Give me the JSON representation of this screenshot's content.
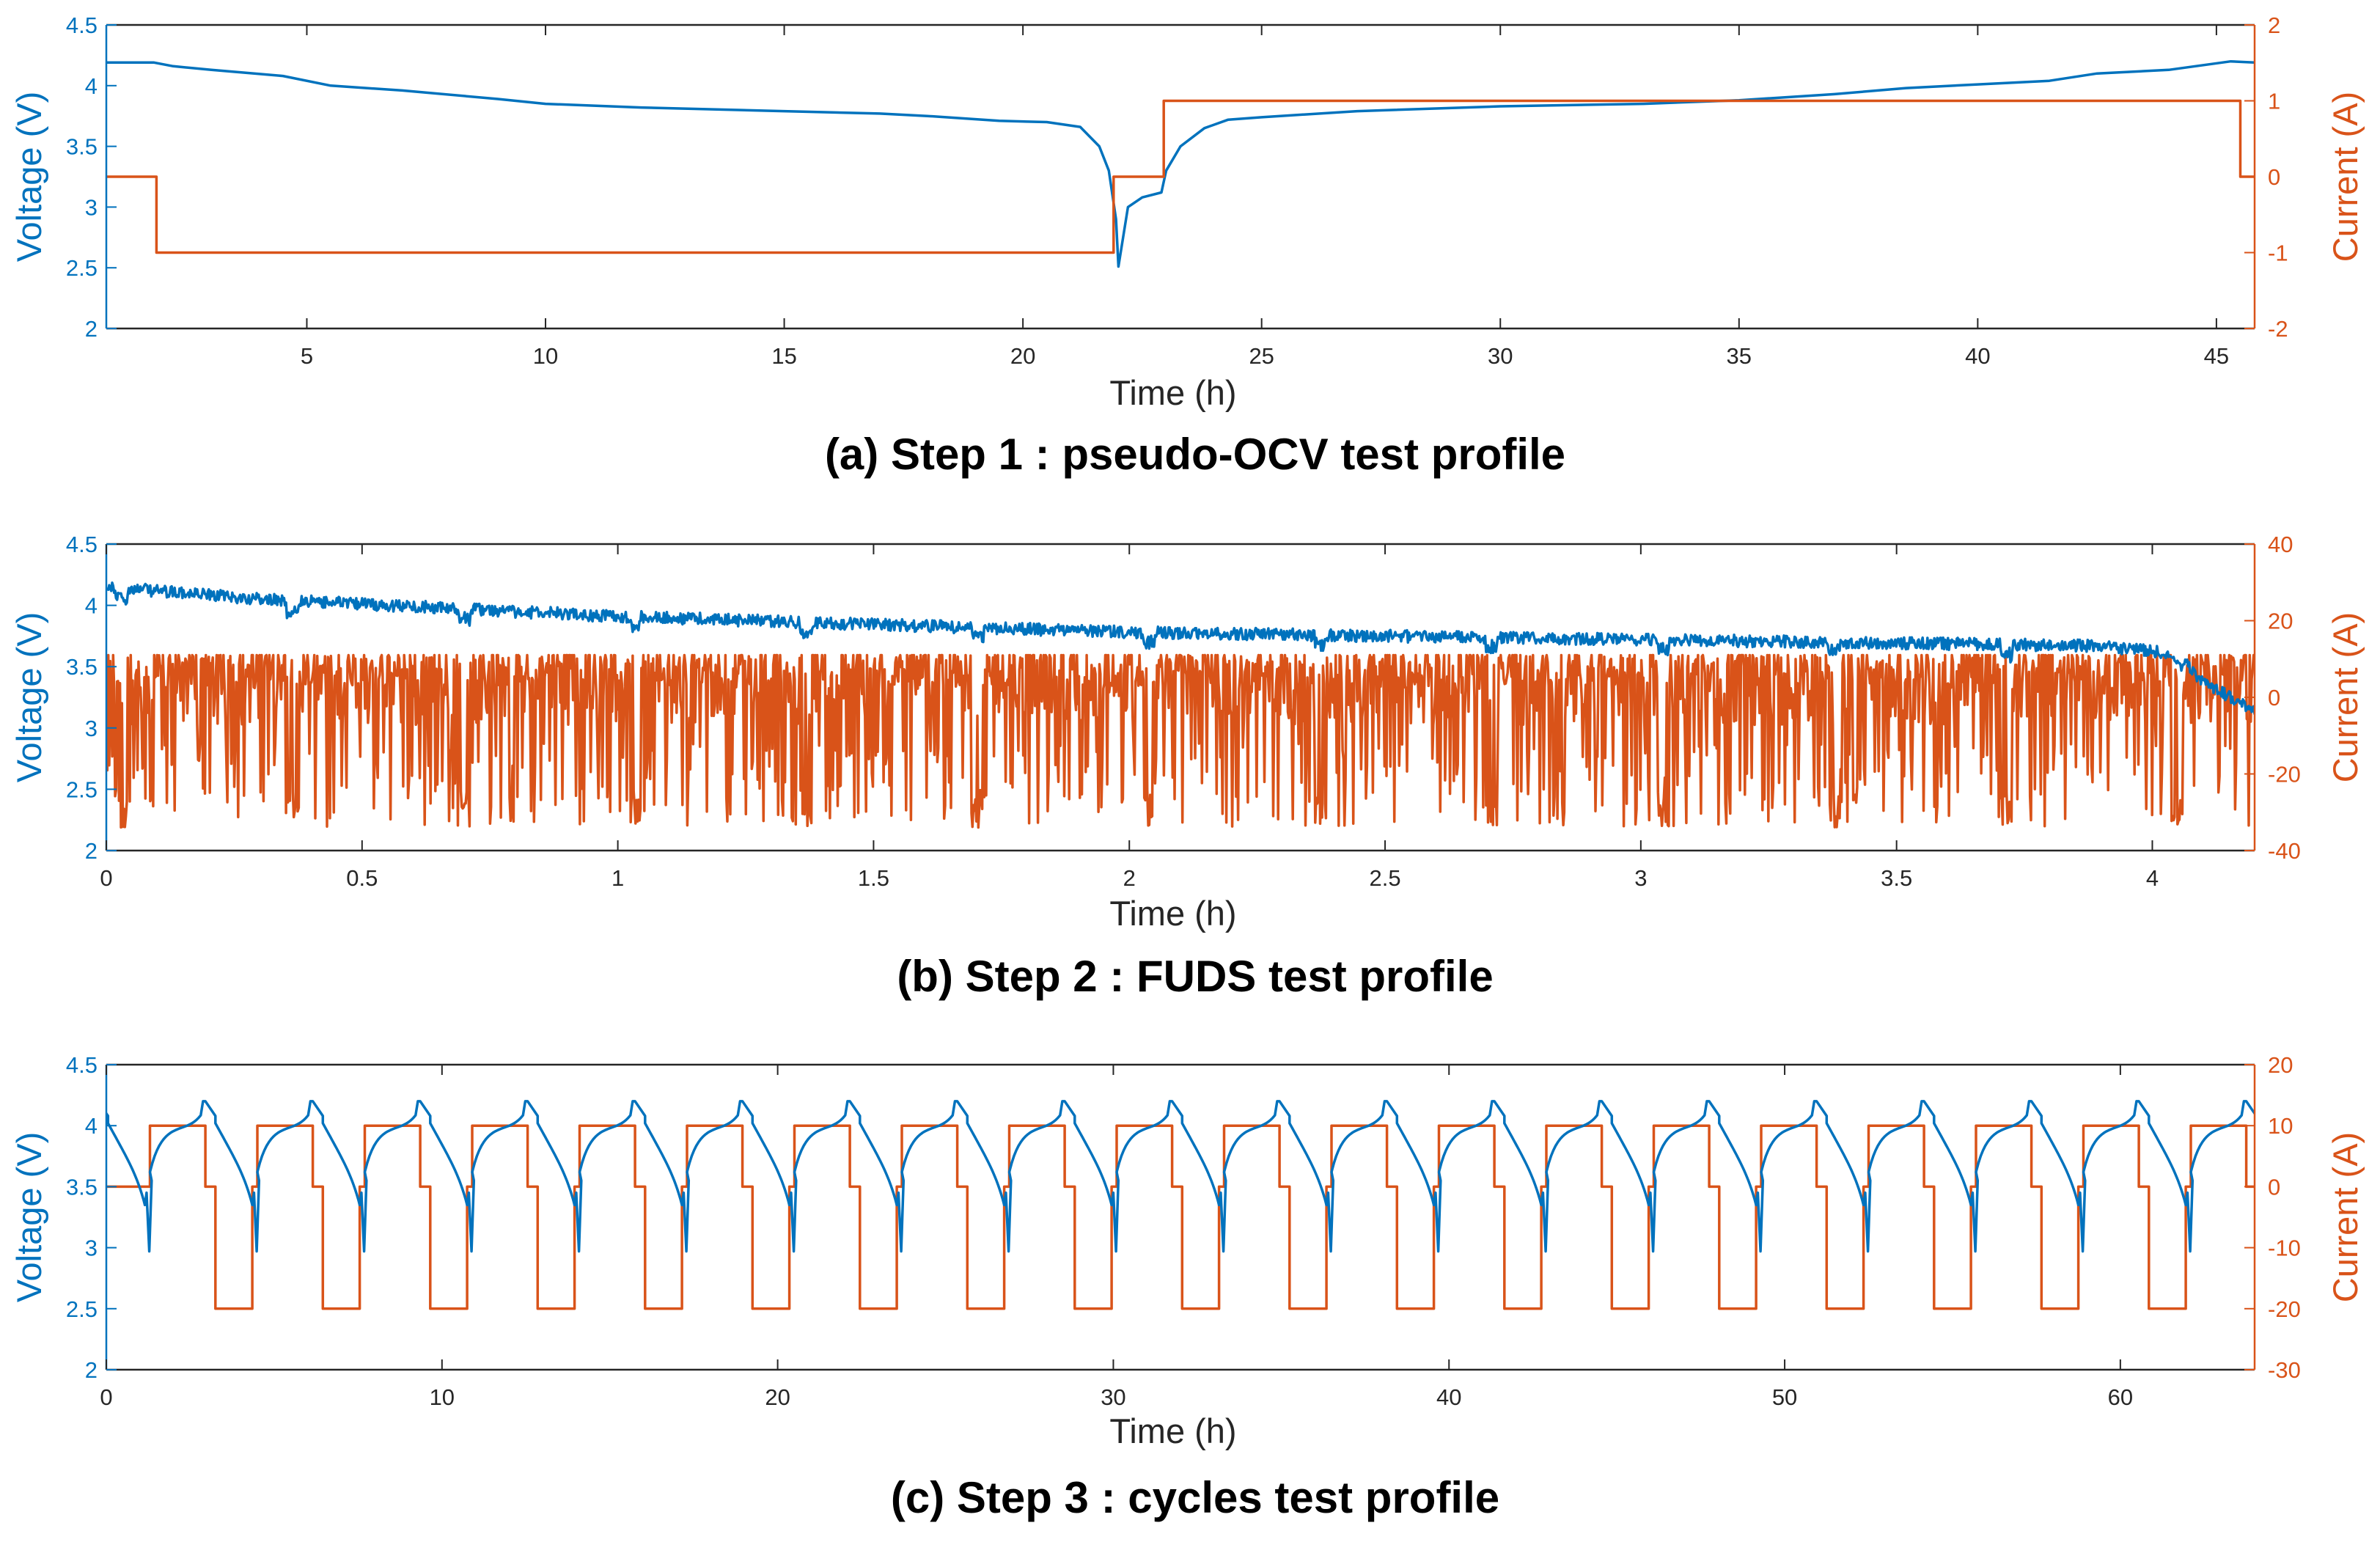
{
  "colors": {
    "voltage": "#0072BD",
    "current": "#D95319",
    "axis": "#262626",
    "caption": "#000000"
  },
  "chart_data": [
    {
      "type": "line",
      "caption": "(a) Step 1 : pseudo-OCV test profile",
      "xlabel": "Time (h)",
      "ylabel_left": "Voltage (V)",
      "ylabel_right": "Current (A)",
      "xlim": [
        0.8,
        45.8
      ],
      "ylim_left": [
        2,
        4.5
      ],
      "ylim_right": [
        -2,
        2
      ],
      "xticks": [
        5,
        10,
        15,
        20,
        25,
        30,
        35,
        40,
        45
      ],
      "xtick_labels": [
        "5",
        "10",
        "15",
        "20",
        "25",
        "30",
        "35",
        "40",
        "45"
      ],
      "yticks_left": [
        2,
        2.5,
        3,
        3.5,
        4,
        4.5
      ],
      "ytick_labels_left": [
        "2",
        "2.5",
        "3",
        "3.5",
        "4",
        "4.5"
      ],
      "yticks_right": [
        -2,
        -1,
        0,
        1,
        2
      ],
      "ytick_labels_right": [
        "-2",
        "-1",
        "0",
        "1",
        "2"
      ],
      "series": [
        {
          "name": "Voltage",
          "axis": "left",
          "style": "line",
          "x": [
            0.8,
            1.8,
            2.2,
            3,
            4.5,
            5.5,
            7,
            9,
            10,
            12,
            15,
            17,
            18,
            19.5,
            20.5,
            21.2,
            21.6,
            21.8,
            21.95,
            22.0,
            22.2,
            22.5,
            22.9,
            23.0,
            23.3,
            23.8,
            24.3,
            25,
            27,
            30,
            33,
            35,
            37,
            38.5,
            40,
            41.5,
            42.5,
            44,
            45.3,
            45.8
          ],
          "values": [
            4.19,
            4.19,
            4.16,
            4.13,
            4.08,
            4.0,
            3.96,
            3.89,
            3.85,
            3.82,
            3.79,
            3.77,
            3.75,
            3.71,
            3.7,
            3.66,
            3.5,
            3.3,
            2.9,
            2.51,
            3.0,
            3.08,
            3.12,
            3.3,
            3.5,
            3.65,
            3.72,
            3.74,
            3.79,
            3.83,
            3.85,
            3.88,
            3.93,
            3.98,
            4.01,
            4.04,
            4.1,
            4.13,
            4.2,
            4.19
          ]
        },
        {
          "name": "Current",
          "axis": "right",
          "style": "step",
          "x": [
            0.8,
            1.85,
            1.85,
            21.9,
            21.9,
            22.95,
            22.95,
            45.5,
            45.5,
            45.8
          ],
          "values": [
            0,
            0,
            -1,
            -1,
            0,
            0,
            1,
            1,
            0,
            0
          ]
        }
      ]
    },
    {
      "type": "line",
      "caption": "(b) Step 2 : FUDS test profile",
      "xlabel": "Time (h)",
      "ylabel_left": "Voltage (V)",
      "ylabel_right": "Current (A)",
      "xlim": [
        0,
        4.2
      ],
      "ylim_left": [
        2,
        4.5
      ],
      "ylim_right": [
        -40,
        40
      ],
      "xticks": [
        0,
        0.5,
        1,
        1.5,
        2,
        2.5,
        3,
        3.5,
        4
      ],
      "xtick_labels": [
        "0",
        "0.5",
        "1",
        "1.5",
        "2",
        "2.5",
        "3",
        "3.5",
        "4"
      ],
      "yticks_left": [
        2,
        2.5,
        3,
        3.5,
        4,
        4.5
      ],
      "ytick_labels_left": [
        "2",
        "2.5",
        "3",
        "3.5",
        "4",
        "4.5"
      ],
      "yticks_right": [
        -40,
        -20,
        0,
        20,
        40
      ],
      "ytick_labels_right": [
        "-40",
        "-20",
        "0",
        "20",
        "40"
      ],
      "fuds": {
        "cycle_h": 0.335,
        "voltage_trend": [
          [
            0,
            4.2
          ],
          [
            0.3,
            4.1
          ],
          [
            1.0,
            3.96
          ],
          [
            2.0,
            3.83
          ],
          [
            3.0,
            3.77
          ],
          [
            3.9,
            3.72
          ],
          [
            4.05,
            3.65
          ],
          [
            4.1,
            3.42
          ],
          [
            4.2,
            3.2
          ]
        ],
        "voltage_noise_V": 0.1,
        "current_max_A": 11,
        "current_min_A": -34,
        "current_mean_A": -2
      },
      "series": [
        {
          "name": "Voltage",
          "axis": "left",
          "style": "noisy-band"
        },
        {
          "name": "Current",
          "axis": "right",
          "style": "noisy-band"
        }
      ]
    },
    {
      "type": "line",
      "caption": "(c) Step 3 : cycles test profile",
      "xlabel": "Time (h)",
      "ylabel_left": "Voltage (V)",
      "ylabel_right": "Current (A)",
      "xlim": [
        0,
        64
      ],
      "ylim_left": [
        2,
        4.5
      ],
      "ylim_right": [
        -30,
        20
      ],
      "xticks": [
        0,
        10,
        20,
        30,
        40,
        50,
        60
      ],
      "xtick_labels": [
        "0",
        "10",
        "20",
        "30",
        "40",
        "50",
        "60"
      ],
      "yticks_left": [
        2,
        2.5,
        3,
        3.5,
        4,
        4.5
      ],
      "ytick_labels_left": [
        "2",
        "2.5",
        "3",
        "3.5",
        "4",
        "4.5"
      ],
      "yticks_right": [
        -30,
        -20,
        -10,
        0,
        10,
        20
      ],
      "ytick_labels_right": [
        "-30",
        "-20",
        "-10",
        "0",
        "10",
        "20"
      ],
      "cycles": {
        "count": 20,
        "period_h": 3.2,
        "current_levels_A": [
          10,
          0,
          -20
        ],
        "voltage_peak_V": 4.2,
        "voltage_min_V": 2.97
      },
      "series": [
        {
          "name": "Voltage",
          "axis": "left",
          "style": "periodic"
        },
        {
          "name": "Current",
          "axis": "right",
          "style": "periodic-step"
        }
      ]
    }
  ]
}
